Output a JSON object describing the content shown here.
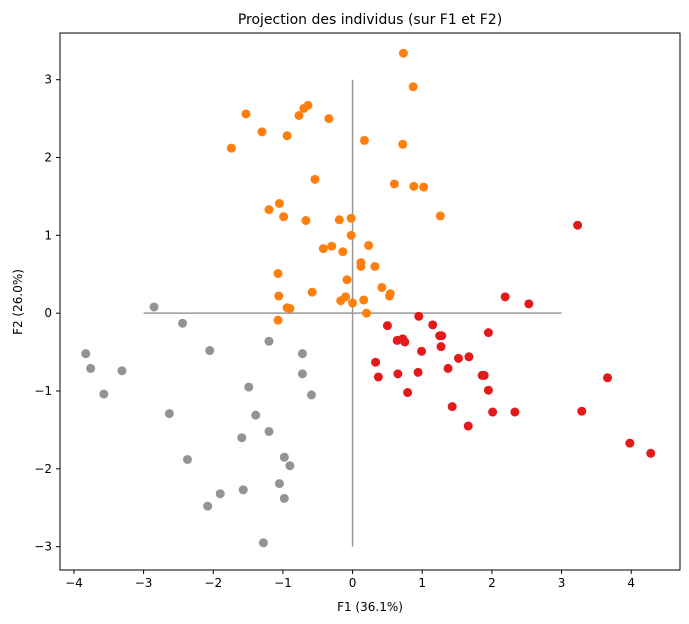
{
  "chart_data": {
    "type": "scatter",
    "title": "Projection des individus (sur F1 et F2)",
    "xlabel": "F1 (36.1%)",
    "ylabel": "F2 (26.0%)",
    "xlim": [
      -4.2,
      4.7
    ],
    "ylim": [
      -3.3,
      3.6
    ],
    "xticks": [
      -4,
      -3,
      -2,
      -1,
      0,
      1,
      2,
      3,
      4
    ],
    "yticks": [
      -3,
      -2,
      -1,
      0,
      1,
      2,
      3
    ],
    "grid": false,
    "reference_lines": {
      "horizontal": {
        "y": 0,
        "x_from": -3,
        "x_to": 3,
        "color": "#999999"
      },
      "vertical": {
        "x": 0,
        "y_from": -3,
        "y_to": 3,
        "color": "#999999"
      }
    },
    "series": [
      {
        "color": "#ff7f0e",
        "points": [
          [
            0.73,
            3.34
          ],
          [
            0.87,
            2.91
          ],
          [
            -1.53,
            2.56
          ],
          [
            -0.64,
            2.67
          ],
          [
            -0.7,
            2.63
          ],
          [
            -0.77,
            2.54
          ],
          [
            -0.34,
            2.5
          ],
          [
            -1.3,
            2.33
          ],
          [
            -0.94,
            2.28
          ],
          [
            0.17,
            2.22
          ],
          [
            0.72,
            2.17
          ],
          [
            -1.74,
            2.12
          ],
          [
            -0.54,
            1.72
          ],
          [
            0.6,
            1.66
          ],
          [
            0.88,
            1.63
          ],
          [
            1.02,
            1.62
          ],
          [
            -1.05,
            1.41
          ],
          [
            -1.2,
            1.33
          ],
          [
            -0.99,
            1.24
          ],
          [
            1.26,
            1.25
          ],
          [
            -0.67,
            1.19
          ],
          [
            -0.19,
            1.2
          ],
          [
            -0.02,
            1.22
          ],
          [
            -0.02,
            1.0
          ],
          [
            -0.3,
            0.86
          ],
          [
            -0.42,
            0.83
          ],
          [
            0.23,
            0.87
          ],
          [
            -0.14,
            0.79
          ],
          [
            0.12,
            0.65
          ],
          [
            0.12,
            0.6
          ],
          [
            0.32,
            0.6
          ],
          [
            -1.07,
            0.51
          ],
          [
            -0.08,
            0.43
          ],
          [
            0.42,
            0.33
          ],
          [
            -0.58,
            0.27
          ],
          [
            0.54,
            0.25
          ],
          [
            0.53,
            0.22
          ],
          [
            -1.06,
            0.22
          ],
          [
            -0.1,
            0.21
          ],
          [
            -0.17,
            0.16
          ],
          [
            0.16,
            0.17
          ],
          [
            0.0,
            0.13
          ],
          [
            -0.94,
            0.07
          ],
          [
            -0.9,
            0.06
          ],
          [
            0.2,
            0.0
          ],
          [
            -1.07,
            -0.09
          ]
        ]
      },
      {
        "color": "#e31a1c",
        "points": [
          [
            3.23,
            1.13
          ],
          [
            2.19,
            0.21
          ],
          [
            2.53,
            0.12
          ],
          [
            0.95,
            -0.04
          ],
          [
            0.5,
            -0.16
          ],
          [
            1.15,
            -0.15
          ],
          [
            1.95,
            -0.25
          ],
          [
            1.25,
            -0.29
          ],
          [
            1.28,
            -0.29
          ],
          [
            0.72,
            -0.33
          ],
          [
            0.64,
            -0.35
          ],
          [
            0.75,
            -0.37
          ],
          [
            1.27,
            -0.43
          ],
          [
            0.99,
            -0.49
          ],
          [
            1.67,
            -0.56
          ],
          [
            1.52,
            -0.58
          ],
          [
            0.33,
            -0.63
          ],
          [
            1.37,
            -0.71
          ],
          [
            0.65,
            -0.78
          ],
          [
            0.94,
            -0.76
          ],
          [
            1.86,
            -0.8
          ],
          [
            1.89,
            -0.8
          ],
          [
            0.37,
            -0.82
          ],
          [
            3.66,
            -0.83
          ],
          [
            1.95,
            -0.99
          ],
          [
            0.79,
            -1.02
          ],
          [
            1.43,
            -1.2
          ],
          [
            2.01,
            -1.27
          ],
          [
            2.33,
            -1.27
          ],
          [
            3.29,
            -1.26
          ],
          [
            1.66,
            -1.45
          ],
          [
            3.98,
            -1.67
          ],
          [
            4.28,
            -1.8
          ]
        ]
      },
      {
        "color": "#939393",
        "points": [
          [
            -2.85,
            0.08
          ],
          [
            -2.44,
            -0.13
          ],
          [
            -2.05,
            -0.48
          ],
          [
            -1.2,
            -0.36
          ],
          [
            -3.83,
            -0.52
          ],
          [
            -3.76,
            -0.71
          ],
          [
            -3.31,
            -0.74
          ],
          [
            -3.57,
            -1.04
          ],
          [
            -0.72,
            -0.52
          ],
          [
            -0.72,
            -0.78
          ],
          [
            -1.49,
            -0.95
          ],
          [
            -0.59,
            -1.05
          ],
          [
            -2.63,
            -1.29
          ],
          [
            -1.39,
            -1.31
          ],
          [
            -1.2,
            -1.52
          ],
          [
            -1.59,
            -1.6
          ],
          [
            -2.37,
            -1.88
          ],
          [
            -0.98,
            -1.85
          ],
          [
            -0.9,
            -1.96
          ],
          [
            -1.05,
            -2.19
          ],
          [
            -1.57,
            -2.27
          ],
          [
            -1.9,
            -2.32
          ],
          [
            -0.98,
            -2.38
          ],
          [
            -2.08,
            -2.48
          ],
          [
            -1.28,
            -2.95
          ]
        ]
      }
    ]
  }
}
